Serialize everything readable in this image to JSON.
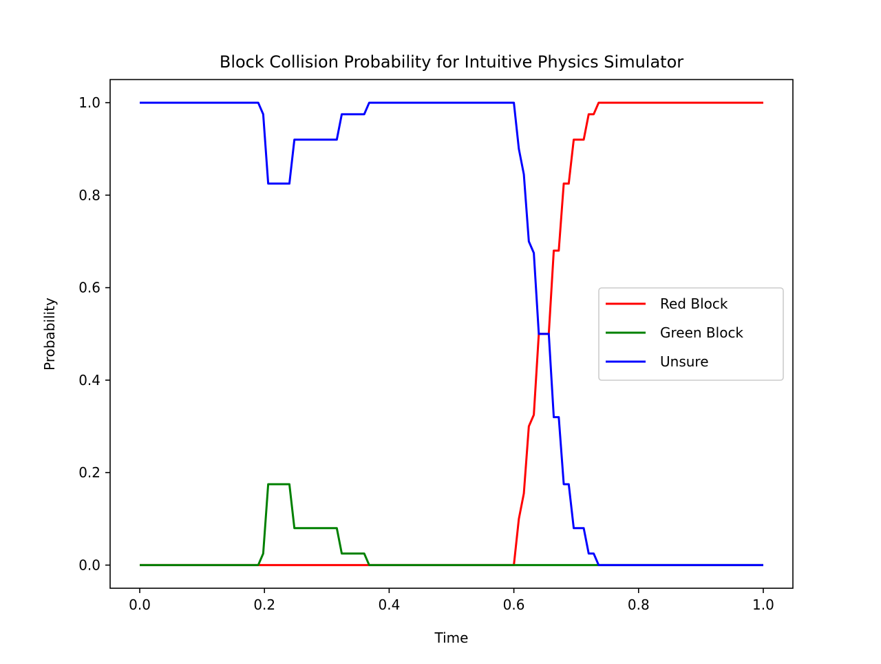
{
  "chart_data": {
    "type": "line",
    "title": "Block Collision Probability for Intuitive Physics Simulator",
    "xlabel": "Time",
    "ylabel": "Probability",
    "xlim": [
      -0.0475,
      1.0475
    ],
    "ylim": [
      -0.05,
      1.05
    ],
    "xticks": [
      0.0,
      0.2,
      0.4,
      0.6,
      0.8,
      1.0
    ],
    "xtick_labels": [
      "0.0",
      "0.2",
      "0.4",
      "0.6",
      "0.8",
      "1.0"
    ],
    "yticks": [
      0.0,
      0.2,
      0.4,
      0.6,
      0.8,
      1.0
    ],
    "ytick_labels": [
      "0.0",
      "0.2",
      "0.4",
      "0.6",
      "0.8",
      "1.0"
    ],
    "grid": false,
    "legend_position": "center-right",
    "series": [
      {
        "name": "Red Block",
        "color": "#ff0000",
        "points": [
          [
            0.0,
            0.0
          ],
          [
            0.192,
            0.0
          ],
          [
            0.2,
            0.0
          ],
          [
            0.36,
            0.0
          ],
          [
            0.6,
            0.0
          ],
          [
            0.608,
            0.1
          ],
          [
            0.616,
            0.155
          ],
          [
            0.624,
            0.3
          ],
          [
            0.632,
            0.325
          ],
          [
            0.64,
            0.5
          ],
          [
            0.648,
            0.5
          ],
          [
            0.656,
            0.5
          ],
          [
            0.664,
            0.68
          ],
          [
            0.672,
            0.68
          ],
          [
            0.68,
            0.825
          ],
          [
            0.688,
            0.825
          ],
          [
            0.696,
            0.92
          ],
          [
            0.704,
            0.92
          ],
          [
            0.712,
            0.92
          ],
          [
            0.72,
            0.975
          ],
          [
            0.728,
            0.975
          ],
          [
            0.736,
            1.0
          ],
          [
            1.0,
            1.0
          ]
        ]
      },
      {
        "name": "Green Block",
        "color": "#008000",
        "points": [
          [
            0.0,
            0.0
          ],
          [
            0.19,
            0.0
          ],
          [
            0.198,
            0.025
          ],
          [
            0.206,
            0.175
          ],
          [
            0.24,
            0.175
          ],
          [
            0.248,
            0.08
          ],
          [
            0.316,
            0.08
          ],
          [
            0.324,
            0.025
          ],
          [
            0.36,
            0.025
          ],
          [
            0.368,
            0.0
          ],
          [
            1.0,
            0.0
          ]
        ]
      },
      {
        "name": "Unsure",
        "color": "#0000ff",
        "points": [
          [
            0.0,
            1.0
          ],
          [
            0.19,
            1.0
          ],
          [
            0.198,
            0.975
          ],
          [
            0.206,
            0.825
          ],
          [
            0.24,
            0.825
          ],
          [
            0.248,
            0.92
          ],
          [
            0.316,
            0.92
          ],
          [
            0.324,
            0.975
          ],
          [
            0.36,
            0.975
          ],
          [
            0.368,
            1.0
          ],
          [
            0.6,
            1.0
          ],
          [
            0.608,
            0.9
          ],
          [
            0.616,
            0.845
          ],
          [
            0.624,
            0.7
          ],
          [
            0.632,
            0.675
          ],
          [
            0.64,
            0.5
          ],
          [
            0.656,
            0.5
          ],
          [
            0.664,
            0.32
          ],
          [
            0.672,
            0.32
          ],
          [
            0.68,
            0.175
          ],
          [
            0.688,
            0.175
          ],
          [
            0.696,
            0.08
          ],
          [
            0.712,
            0.08
          ],
          [
            0.72,
            0.025
          ],
          [
            0.728,
            0.025
          ],
          [
            0.736,
            0.0
          ],
          [
            1.0,
            0.0
          ]
        ]
      }
    ]
  }
}
